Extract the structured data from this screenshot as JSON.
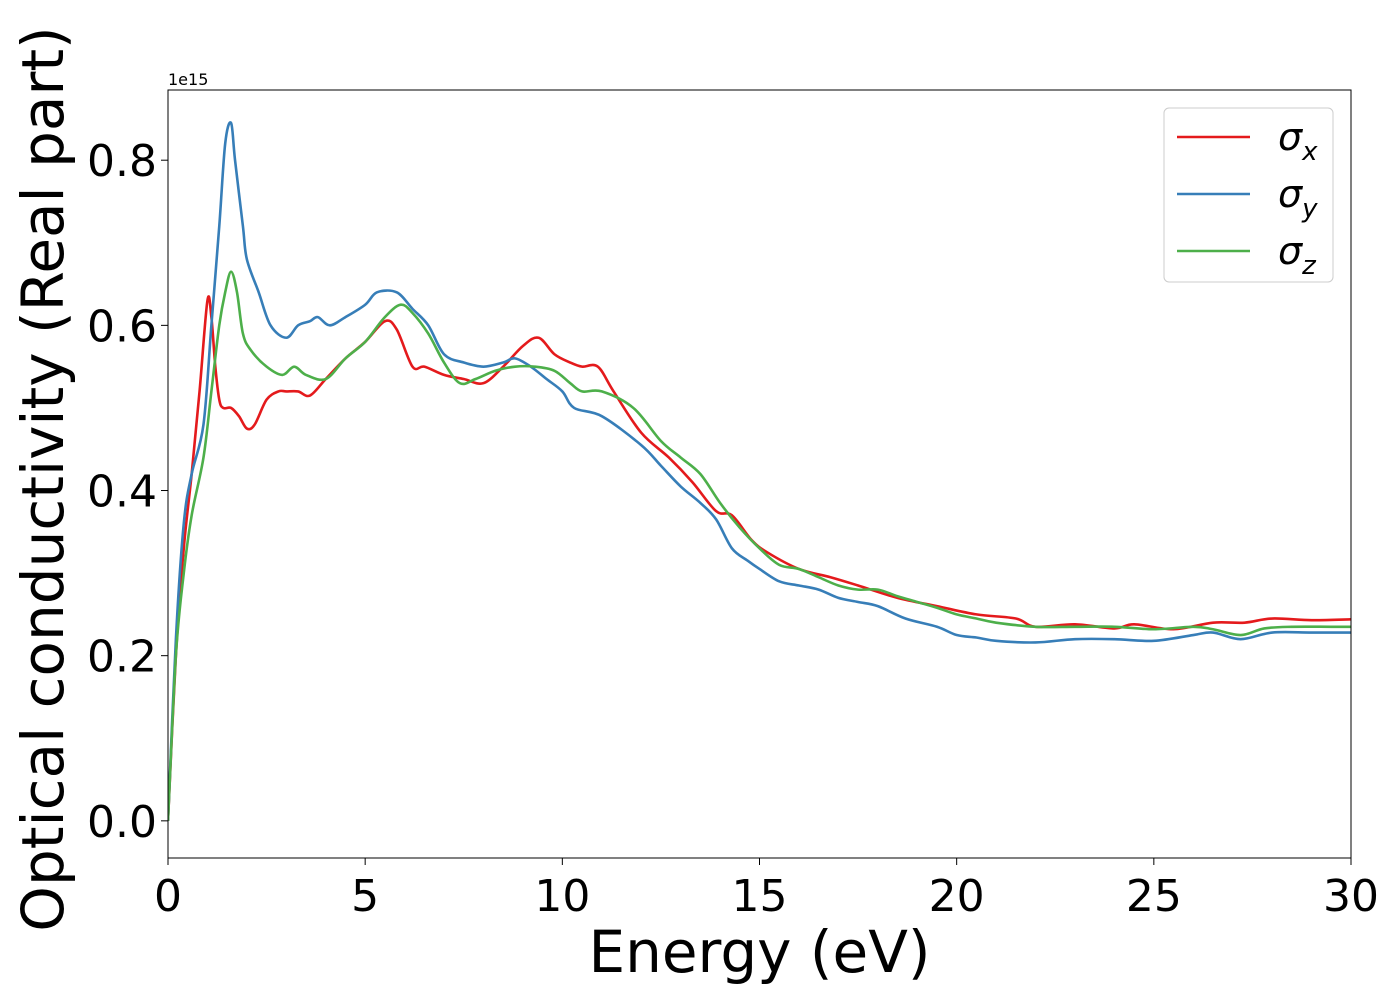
{
  "chart_data": {
    "type": "line",
    "xlabel": "Energy (eV)",
    "ylabel": "Optical conductivity (Real part)",
    "offset_text": "1e15",
    "xlim": [
      0,
      30
    ],
    "ylim": [
      -0.045,
      0.885
    ],
    "xticks": [
      0,
      5,
      10,
      15,
      20,
      25,
      30
    ],
    "xtick_labels": [
      "0",
      "5",
      "10",
      "15",
      "20",
      "25",
      "30"
    ],
    "yticks": [
      0.0,
      0.2,
      0.4,
      0.6,
      0.8
    ],
    "ytick_labels": [
      "0.0",
      "0.2",
      "0.4",
      "0.6",
      "0.8"
    ],
    "grid": false,
    "legend_position": "top-right",
    "series": [
      {
        "name": "σx",
        "symbol": "σ",
        "subscript": "x",
        "color": "#e41a1c",
        "x": [
          0,
          0.2,
          0.4,
          0.6,
          0.8,
          1.0,
          1.1,
          1.2,
          1.3,
          1.4,
          1.6,
          1.8,
          2.0,
          2.2,
          2.5,
          2.8,
          3.0,
          3.3,
          3.6,
          4.0,
          4.5,
          5.0,
          5.5,
          5.8,
          6.2,
          6.5,
          7.0,
          7.5,
          8.0,
          8.5,
          9.0,
          9.4,
          9.8,
          10.2,
          10.5,
          10.9,
          11.3,
          12.0,
          12.7,
          13.3,
          13.9,
          14.3,
          14.8,
          15.2,
          16.0,
          16.8,
          17.5,
          18.5,
          19.5,
          20.5,
          21.5,
          22.0,
          23.0,
          24.0,
          24.5,
          25.5,
          26.5,
          27.3,
          28.0,
          29.0,
          30.0
        ],
        "y": [
          0.0,
          0.2,
          0.33,
          0.42,
          0.52,
          0.63,
          0.61,
          0.55,
          0.51,
          0.5,
          0.5,
          0.49,
          0.475,
          0.48,
          0.51,
          0.52,
          0.52,
          0.52,
          0.515,
          0.535,
          0.56,
          0.58,
          0.605,
          0.595,
          0.55,
          0.55,
          0.54,
          0.535,
          0.53,
          0.55,
          0.575,
          0.585,
          0.565,
          0.555,
          0.55,
          0.55,
          0.52,
          0.47,
          0.44,
          0.41,
          0.375,
          0.37,
          0.34,
          0.325,
          0.305,
          0.295,
          0.285,
          0.27,
          0.26,
          0.25,
          0.245,
          0.235,
          0.238,
          0.233,
          0.238,
          0.232,
          0.24,
          0.24,
          0.245,
          0.243,
          0.244
        ]
      },
      {
        "name": "σy",
        "symbol": "σ",
        "subscript": "y",
        "color": "#377eb8",
        "x": [
          0,
          0.2,
          0.4,
          0.6,
          0.9,
          1.1,
          1.3,
          1.45,
          1.6,
          1.7,
          1.9,
          2.0,
          2.3,
          2.6,
          3.0,
          3.3,
          3.6,
          3.8,
          4.1,
          4.5,
          5.0,
          5.3,
          5.8,
          6.2,
          6.6,
          7.0,
          7.5,
          8.0,
          8.5,
          8.8,
          9.2,
          9.6,
          10.0,
          10.3,
          11.0,
          12.0,
          12.5,
          13.0,
          13.5,
          13.9,
          14.3,
          14.7,
          15.0,
          15.5,
          16.0,
          16.5,
          17.0,
          17.5,
          18.0,
          18.7,
          19.5,
          20.0,
          20.5,
          21.0,
          22.0,
          23.0,
          24.0,
          25.0,
          26.0,
          26.5,
          27.2,
          28.0,
          29.0,
          30.0
        ],
        "y": [
          0.0,
          0.22,
          0.36,
          0.42,
          0.48,
          0.6,
          0.72,
          0.82,
          0.845,
          0.8,
          0.72,
          0.68,
          0.64,
          0.6,
          0.585,
          0.6,
          0.605,
          0.61,
          0.6,
          0.61,
          0.625,
          0.64,
          0.64,
          0.62,
          0.6,
          0.565,
          0.555,
          0.55,
          0.555,
          0.56,
          0.55,
          0.535,
          0.52,
          0.5,
          0.49,
          0.455,
          0.43,
          0.405,
          0.385,
          0.365,
          0.33,
          0.315,
          0.305,
          0.29,
          0.285,
          0.28,
          0.27,
          0.265,
          0.26,
          0.245,
          0.235,
          0.225,
          0.222,
          0.218,
          0.216,
          0.22,
          0.22,
          0.218,
          0.225,
          0.228,
          0.22,
          0.228,
          0.228,
          0.228
        ]
      },
      {
        "name": "σz",
        "symbol": "σ",
        "subscript": "z",
        "color": "#4daf4a",
        "x": [
          0,
          0.2,
          0.4,
          0.6,
          0.9,
          1.1,
          1.3,
          1.45,
          1.6,
          1.75,
          1.9,
          2.1,
          2.5,
          2.9,
          3.2,
          3.5,
          4.0,
          4.5,
          5.0,
          5.5,
          5.9,
          6.2,
          6.6,
          7.0,
          7.4,
          7.8,
          8.3,
          8.8,
          9.3,
          9.8,
          10.2,
          10.5,
          11.0,
          11.8,
          12.5,
          13.0,
          13.5,
          14.0,
          14.5,
          15.0,
          15.5,
          16.0,
          16.5,
          17.0,
          17.5,
          18.0,
          18.5,
          19.0,
          19.5,
          20.0,
          20.5,
          21.0,
          22.0,
          23.0,
          24.0,
          25.0,
          26.0,
          26.5,
          27.2,
          27.8,
          28.5,
          29.5,
          30.0
        ],
        "y": [
          0.0,
          0.2,
          0.3,
          0.37,
          0.44,
          0.52,
          0.6,
          0.64,
          0.665,
          0.64,
          0.59,
          0.57,
          0.55,
          0.54,
          0.55,
          0.54,
          0.535,
          0.56,
          0.58,
          0.61,
          0.625,
          0.615,
          0.59,
          0.555,
          0.53,
          0.535,
          0.545,
          0.55,
          0.55,
          0.545,
          0.53,
          0.52,
          0.52,
          0.5,
          0.46,
          0.44,
          0.42,
          0.385,
          0.355,
          0.33,
          0.31,
          0.305,
          0.295,
          0.285,
          0.28,
          0.28,
          0.272,
          0.265,
          0.258,
          0.25,
          0.245,
          0.24,
          0.235,
          0.235,
          0.235,
          0.232,
          0.235,
          0.232,
          0.225,
          0.233,
          0.235,
          0.235,
          0.235
        ]
      }
    ]
  }
}
